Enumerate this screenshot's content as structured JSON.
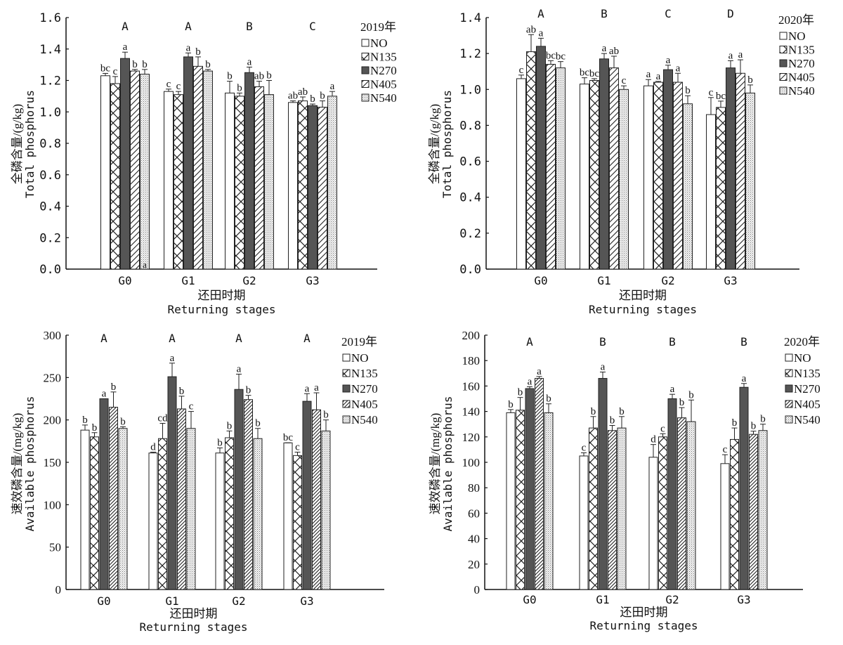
{
  "chart_data": [
    {
      "id": "tp2019",
      "type": "bar",
      "title": "",
      "legend_title": "2019年",
      "legend_position": "top-right",
      "xlabel_cn": "还田时期",
      "xlabel_en": "Returning stages",
      "ylabel_cn": "全磷含量/(g/kg)",
      "ylabel_en": "Total phosphorus",
      "ylim": [
        0,
        1.6
      ],
      "yticks": [
        "0.0",
        "0.2",
        "0.4",
        "0.6",
        "0.8",
        "1.0",
        "1.2",
        "1.4",
        "1.6"
      ],
      "categories": [
        "G0",
        "G1",
        "G2",
        "G3"
      ],
      "group_letters": [
        "A",
        "A",
        "B",
        "C"
      ],
      "series": [
        {
          "name": "NO",
          "pattern": "white",
          "values": [
            1.23,
            1.13,
            1.12,
            1.06
          ],
          "errors": [
            0.015,
            0.015,
            0.075,
            0.01
          ],
          "letters": [
            "bc",
            "c",
            "b",
            "ab"
          ]
        },
        {
          "name": "N135",
          "pattern": "crosshatch",
          "values": [
            1.18,
            1.11,
            1.1,
            1.07
          ],
          "errors": [
            0.045,
            0.02,
            0.02,
            0.025
          ],
          "letters": [
            "c",
            "c",
            "b",
            "ab"
          ]
        },
        {
          "name": "N270",
          "pattern": "dark",
          "values": [
            1.34,
            1.35,
            1.25,
            1.04
          ],
          "errors": [
            0.04,
            0.025,
            0.035,
            0.01
          ],
          "letters": [
            "a",
            "a",
            "a",
            "b"
          ]
        },
        {
          "name": "N405",
          "pattern": "diagonal",
          "values": [
            1.26,
            1.29,
            1.16,
            1.03
          ],
          "errors": [
            0.01,
            0.06,
            0.035,
            0.04
          ],
          "letters": [
            "b",
            "b",
            "ab",
            "b"
          ]
        },
        {
          "name": "N540",
          "pattern": "dotted",
          "values": [
            1.24,
            1.26,
            1.11,
            1.1
          ],
          "errors": [
            0.03,
            0.01,
            0.09,
            0.03
          ],
          "letters": [
            "b",
            "b",
            "b",
            "a"
          ]
        }
      ],
      "annotations": [
        {
          "text": "a",
          "note": "stray letter at base of G0 N540 bar"
        }
      ]
    },
    {
      "id": "tp2020",
      "type": "bar",
      "title": "",
      "legend_title": "2020年",
      "legend_position": "top-right",
      "xlabel_cn": "还田时期",
      "xlabel_en": "Returning stages",
      "ylabel_cn": "全磷含量/(g/kg)",
      "ylabel_en": "Total phosphorus",
      "ylim": [
        0,
        1.4
      ],
      "yticks": [
        "0.0",
        "0.2",
        "0.4",
        "0.6",
        "0.8",
        "1.0",
        "1.2",
        "1.4"
      ],
      "categories": [
        "G0",
        "G1",
        "G2",
        "G3"
      ],
      "group_letters": [
        "A",
        "B",
        "C",
        "D"
      ],
      "series": [
        {
          "name": "NO",
          "pattern": "white",
          "values": [
            1.06,
            1.03,
            1.02,
            0.86
          ],
          "errors": [
            0.02,
            0.035,
            0.035,
            0.095
          ],
          "letters": [
            "c",
            "bc",
            "a",
            "c"
          ]
        },
        {
          "name": "N135",
          "pattern": "crosshatch",
          "values": [
            1.21,
            1.05,
            1.04,
            0.9
          ],
          "errors": [
            0.095,
            0.01,
            0.005,
            0.035
          ],
          "letters": [
            "ab",
            "bc",
            "a",
            "bc"
          ]
        },
        {
          "name": "N270",
          "pattern": "dark",
          "values": [
            1.24,
            1.17,
            1.11,
            1.12
          ],
          "errors": [
            0.045,
            0.03,
            0.025,
            0.04
          ],
          "letters": [
            "a",
            "a",
            "a",
            "a"
          ]
        },
        {
          "name": "N405",
          "pattern": "diagonal",
          "values": [
            1.14,
            1.12,
            1.04,
            1.09
          ],
          "errors": [
            0.02,
            0.065,
            0.05,
            0.075
          ],
          "letters": [
            "bc",
            "ab",
            "a",
            "a"
          ]
        },
        {
          "name": "N540",
          "pattern": "dotted",
          "values": [
            1.12,
            1.0,
            0.92,
            0.98
          ],
          "errors": [
            0.035,
            0.02,
            0.045,
            0.045
          ],
          "letters": [
            "bc",
            "c",
            "b",
            "b"
          ]
        }
      ]
    },
    {
      "id": "ap2019",
      "type": "bar",
      "title": "",
      "legend_title": "2019年",
      "legend_position": "top-right",
      "xlabel_cn": "还田时期",
      "xlabel_en": "Returning stages",
      "ylabel_cn": "速效磷含量/(mg/kg)",
      "ylabel_en": "Available phosphorus",
      "ylim": [
        0,
        300
      ],
      "yticks": [
        "0",
        "50",
        "100",
        "150",
        "200",
        "250",
        "300"
      ],
      "categories": [
        "G0",
        "G1",
        "G2",
        "G3"
      ],
      "group_letters": [
        "A",
        "A",
        "A",
        "A"
      ],
      "series": [
        {
          "name": "NO",
          "pattern": "white",
          "values": [
            188,
            161,
            161,
            173
          ],
          "errors": [
            6,
            1,
            6,
            0
          ],
          "letters": [
            "b",
            "d",
            "b",
            "bc"
          ]
        },
        {
          "name": "N135",
          "pattern": "crosshatch",
          "values": [
            180,
            178,
            179,
            158
          ],
          "errors": [
            5,
            18,
            8,
            4
          ],
          "letters": [
            "b",
            "cd",
            "b",
            "c"
          ]
        },
        {
          "name": "N270",
          "pattern": "dark",
          "values": [
            225,
            251,
            236,
            222
          ],
          "errors": [
            0,
            16,
            18,
            9
          ],
          "letters": [
            "a",
            "a",
            "a",
            "a"
          ]
        },
        {
          "name": "N405",
          "pattern": "diagonal",
          "values": [
            215,
            213,
            224,
            212
          ],
          "errors": [
            18,
            15,
            5,
            20
          ],
          "letters": [
            "b",
            "b",
            "b",
            "a"
          ]
        },
        {
          "name": "N540",
          "pattern": "dotted",
          "values": [
            190,
            190,
            178,
            187
          ],
          "errors": [
            2,
            20,
            12,
            13
          ],
          "letters": [
            "b",
            "c",
            "b",
            "b"
          ]
        }
      ]
    },
    {
      "id": "ap2020",
      "type": "bar",
      "title": "",
      "legend_title": "2020年",
      "legend_position": "top-right",
      "xlabel_cn": "还田时期",
      "xlabel_en": "Returning stages",
      "ylabel_cn": "速效磷含量/(mg/kg)",
      "ylabel_en": "Available phosphorus",
      "ylim": [
        0,
        200
      ],
      "yticks": [
        "0",
        "20",
        "40",
        "60",
        "80",
        "100",
        "120",
        "140",
        "160",
        "180",
        "200"
      ],
      "categories": [
        "G0",
        "G1",
        "G2",
        "G3"
      ],
      "group_letters": [
        "A",
        "B",
        "B",
        "B"
      ],
      "series": [
        {
          "name": "NO",
          "pattern": "white",
          "values": [
            139,
            105,
            104,
            99
          ],
          "errors": [
            2.5,
            2.5,
            10,
            7
          ],
          "letters": [
            "b",
            "c",
            "d",
            "c"
          ]
        },
        {
          "name": "N135",
          "pattern": "crosshatch",
          "values": [
            141,
            127,
            120,
            118
          ],
          "errors": [
            10,
            9,
            2.5,
            9
          ],
          "letters": [
            "b",
            "b",
            "c",
            "b"
          ]
        },
        {
          "name": "N270",
          "pattern": "dark",
          "values": [
            158,
            166,
            150,
            159
          ],
          "errors": [
            1.5,
            5,
            3.5,
            3
          ],
          "letters": [
            "a",
            "a",
            "a",
            "a"
          ]
        },
        {
          "name": "N405",
          "pattern": "diagonal",
          "values": [
            166,
            125,
            135,
            122
          ],
          "errors": [
            1.5,
            4,
            8,
            2.5
          ],
          "letters": [
            "a",
            "b",
            "b",
            "b"
          ]
        },
        {
          "name": "N540",
          "pattern": "dotted",
          "values": [
            139,
            127,
            132,
            125
          ],
          "errors": [
            7,
            9,
            17,
            5
          ],
          "letters": [
            "b",
            "b",
            "b",
            "b"
          ]
        }
      ]
    }
  ],
  "colors": {
    "bar_dark": "#555555",
    "bar_outline": "#222222",
    "axis": "#111111",
    "background": "#ffffff"
  }
}
